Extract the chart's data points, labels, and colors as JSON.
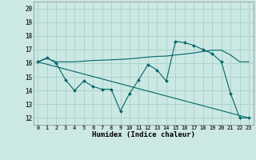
{
  "title": "",
  "xlabel": "Humidex (Indice chaleur)",
  "bg_color": "#cce8e4",
  "grid_color": "#aad4cc",
  "line_color": "#006666",
  "xlim": [
    -0.5,
    23.5
  ],
  "ylim": [
    11.5,
    20.5
  ],
  "xticks": [
    0,
    1,
    2,
    3,
    4,
    5,
    6,
    7,
    8,
    9,
    10,
    11,
    12,
    13,
    14,
    15,
    16,
    17,
    18,
    19,
    20,
    21,
    22,
    23
  ],
  "yticks": [
    12,
    13,
    14,
    15,
    16,
    17,
    18,
    19,
    20
  ],
  "line1_x": [
    0,
    1,
    2,
    3,
    4,
    5,
    6,
    7,
    8,
    9,
    10,
    11,
    12,
    13,
    14,
    15,
    16,
    17,
    18,
    19,
    20,
    21,
    22,
    23
  ],
  "line1_y": [
    16.1,
    16.4,
    16.0,
    14.8,
    14.0,
    14.7,
    14.3,
    14.1,
    14.1,
    12.5,
    13.8,
    14.8,
    15.9,
    15.5,
    14.7,
    17.6,
    17.5,
    17.3,
    17.0,
    16.7,
    16.1,
    13.8,
    12.0,
    12.0
  ],
  "line2_x": [
    0,
    1,
    2,
    3,
    4,
    5,
    6,
    7,
    8,
    9,
    10,
    11,
    12,
    13,
    14,
    15,
    16,
    17,
    18,
    19,
    20,
    21,
    22,
    23
  ],
  "line2_y": [
    16.1,
    16.35,
    16.1,
    16.1,
    16.1,
    16.15,
    16.2,
    16.22,
    16.25,
    16.28,
    16.32,
    16.38,
    16.45,
    16.5,
    16.52,
    16.6,
    16.67,
    16.75,
    16.85,
    16.95,
    16.95,
    16.6,
    16.1,
    16.1
  ],
  "line3_x": [
    0,
    23
  ],
  "line3_y": [
    16.1,
    12.0
  ],
  "marker_x": [
    0,
    1,
    2,
    3,
    4,
    5,
    6,
    7,
    8,
    9,
    10,
    11,
    12,
    13,
    14,
    15,
    16,
    17,
    18,
    19,
    20,
    21,
    22,
    23
  ],
  "marker_y": [
    16.1,
    16.4,
    16.0,
    14.8,
    14.0,
    14.7,
    14.3,
    14.1,
    14.1,
    12.5,
    13.8,
    14.8,
    15.9,
    15.5,
    14.7,
    17.6,
    17.5,
    17.3,
    17.0,
    16.7,
    16.1,
    13.8,
    12.0,
    12.0
  ]
}
